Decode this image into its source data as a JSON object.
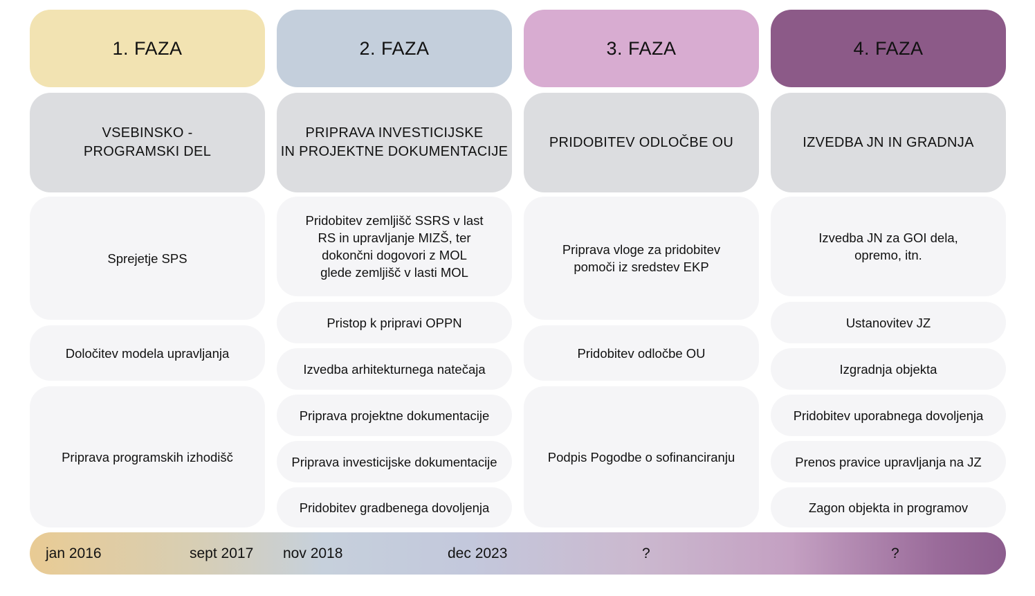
{
  "phases": [
    {
      "title": "1. FAZA",
      "header": "VSEBINSKO -\nPROGRAMSKI DEL",
      "color": "#f2e3b2",
      "tasks": [
        "Sprejetje SPS",
        "Določitev modela upravljanja",
        "Priprava programskih izhodišč"
      ]
    },
    {
      "title": "2. FAZA",
      "header": "PRIPRAVA INVESTICIJSKE\nIN PROJEKTNE DOKUMENTACIJE",
      "color": "#c4cfdc",
      "tasks": [
        "Pridobitev zemljišč SSRS v last\nRS in upravljanje MIZŠ, ter\ndokončni dogovori z MOL\nglede zemljišč v lasti MOL",
        "Pristop k pripravi OPPN",
        "Izvedba arhitekturnega natečaja",
        "Priprava projektne dokumentacije",
        "Priprava investicijske dokumentacije",
        "Pridobitev gradbenega dovoljenja"
      ]
    },
    {
      "title": "3. FAZA",
      "header": "PRIDOBITEV ODLOČBE OU",
      "color": "#d8acd1",
      "tasks": [
        "Priprava vloge za pridobitev\npomoči iz sredstev EKP",
        "Pridobitev odločbe OU",
        "Podpis Pogodbe o sofinanciranju"
      ]
    },
    {
      "title": "4. FAZA",
      "header": "IZVEDBA JN IN GRADNJA",
      "color": "#8c5a88",
      "tasks": [
        "Izvedba JN za GOI dela,\nopremo, itn.",
        "Ustanovitev JZ",
        "Izgradnja objekta",
        "Pridobitev uporabnega dovoljenja",
        "Prenos pravice upravljanja na JZ",
        "Zagon objekta in programov"
      ]
    }
  ],
  "timeline": {
    "labels": [
      "jan 2016",
      "sept 2017",
      "nov 2018",
      "dec 2023",
      "?",
      "?"
    ]
  }
}
